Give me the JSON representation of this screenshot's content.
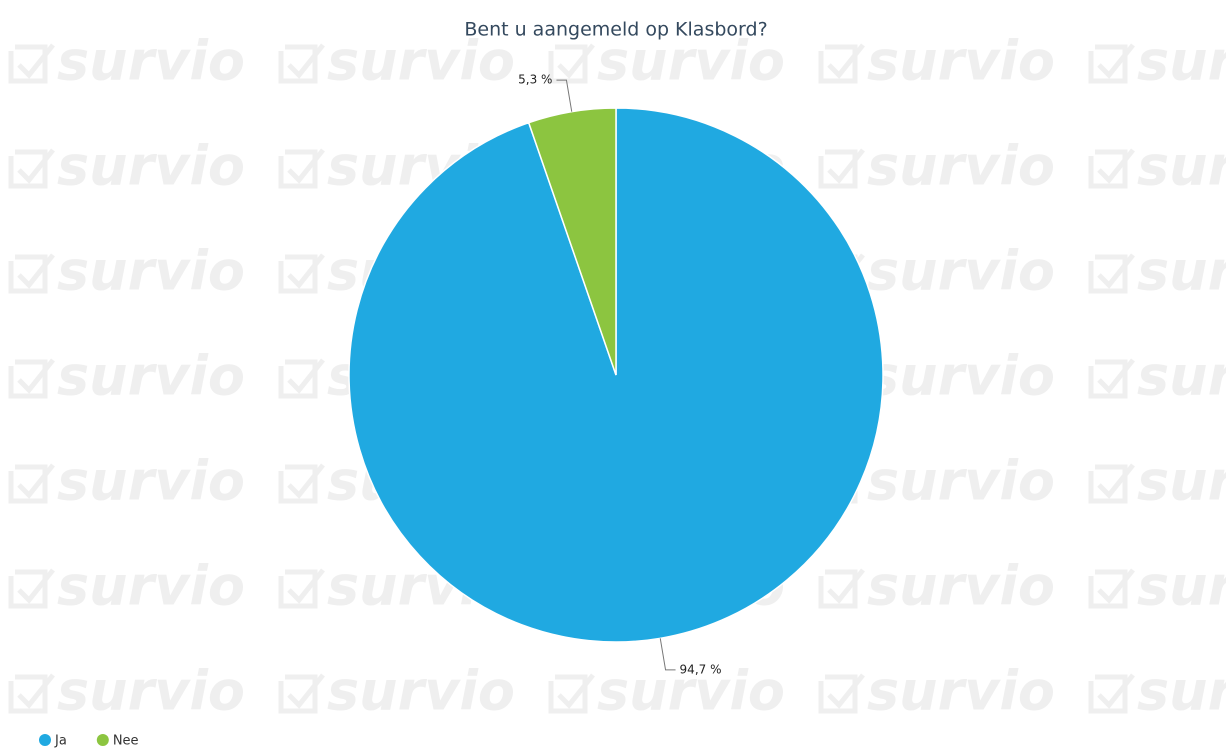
{
  "chart_data": {
    "type": "pie",
    "title": "Bent u aangemeld op Klasbord?",
    "categories": [
      "Ja",
      "Nee"
    ],
    "values": [
      94.7,
      5.3
    ],
    "value_labels": [
      "94,7 %",
      "5,3 %"
    ],
    "colors": [
      "#20a9e1",
      "#8cc540"
    ],
    "legend": "bottom-left",
    "watermark": "survio"
  }
}
